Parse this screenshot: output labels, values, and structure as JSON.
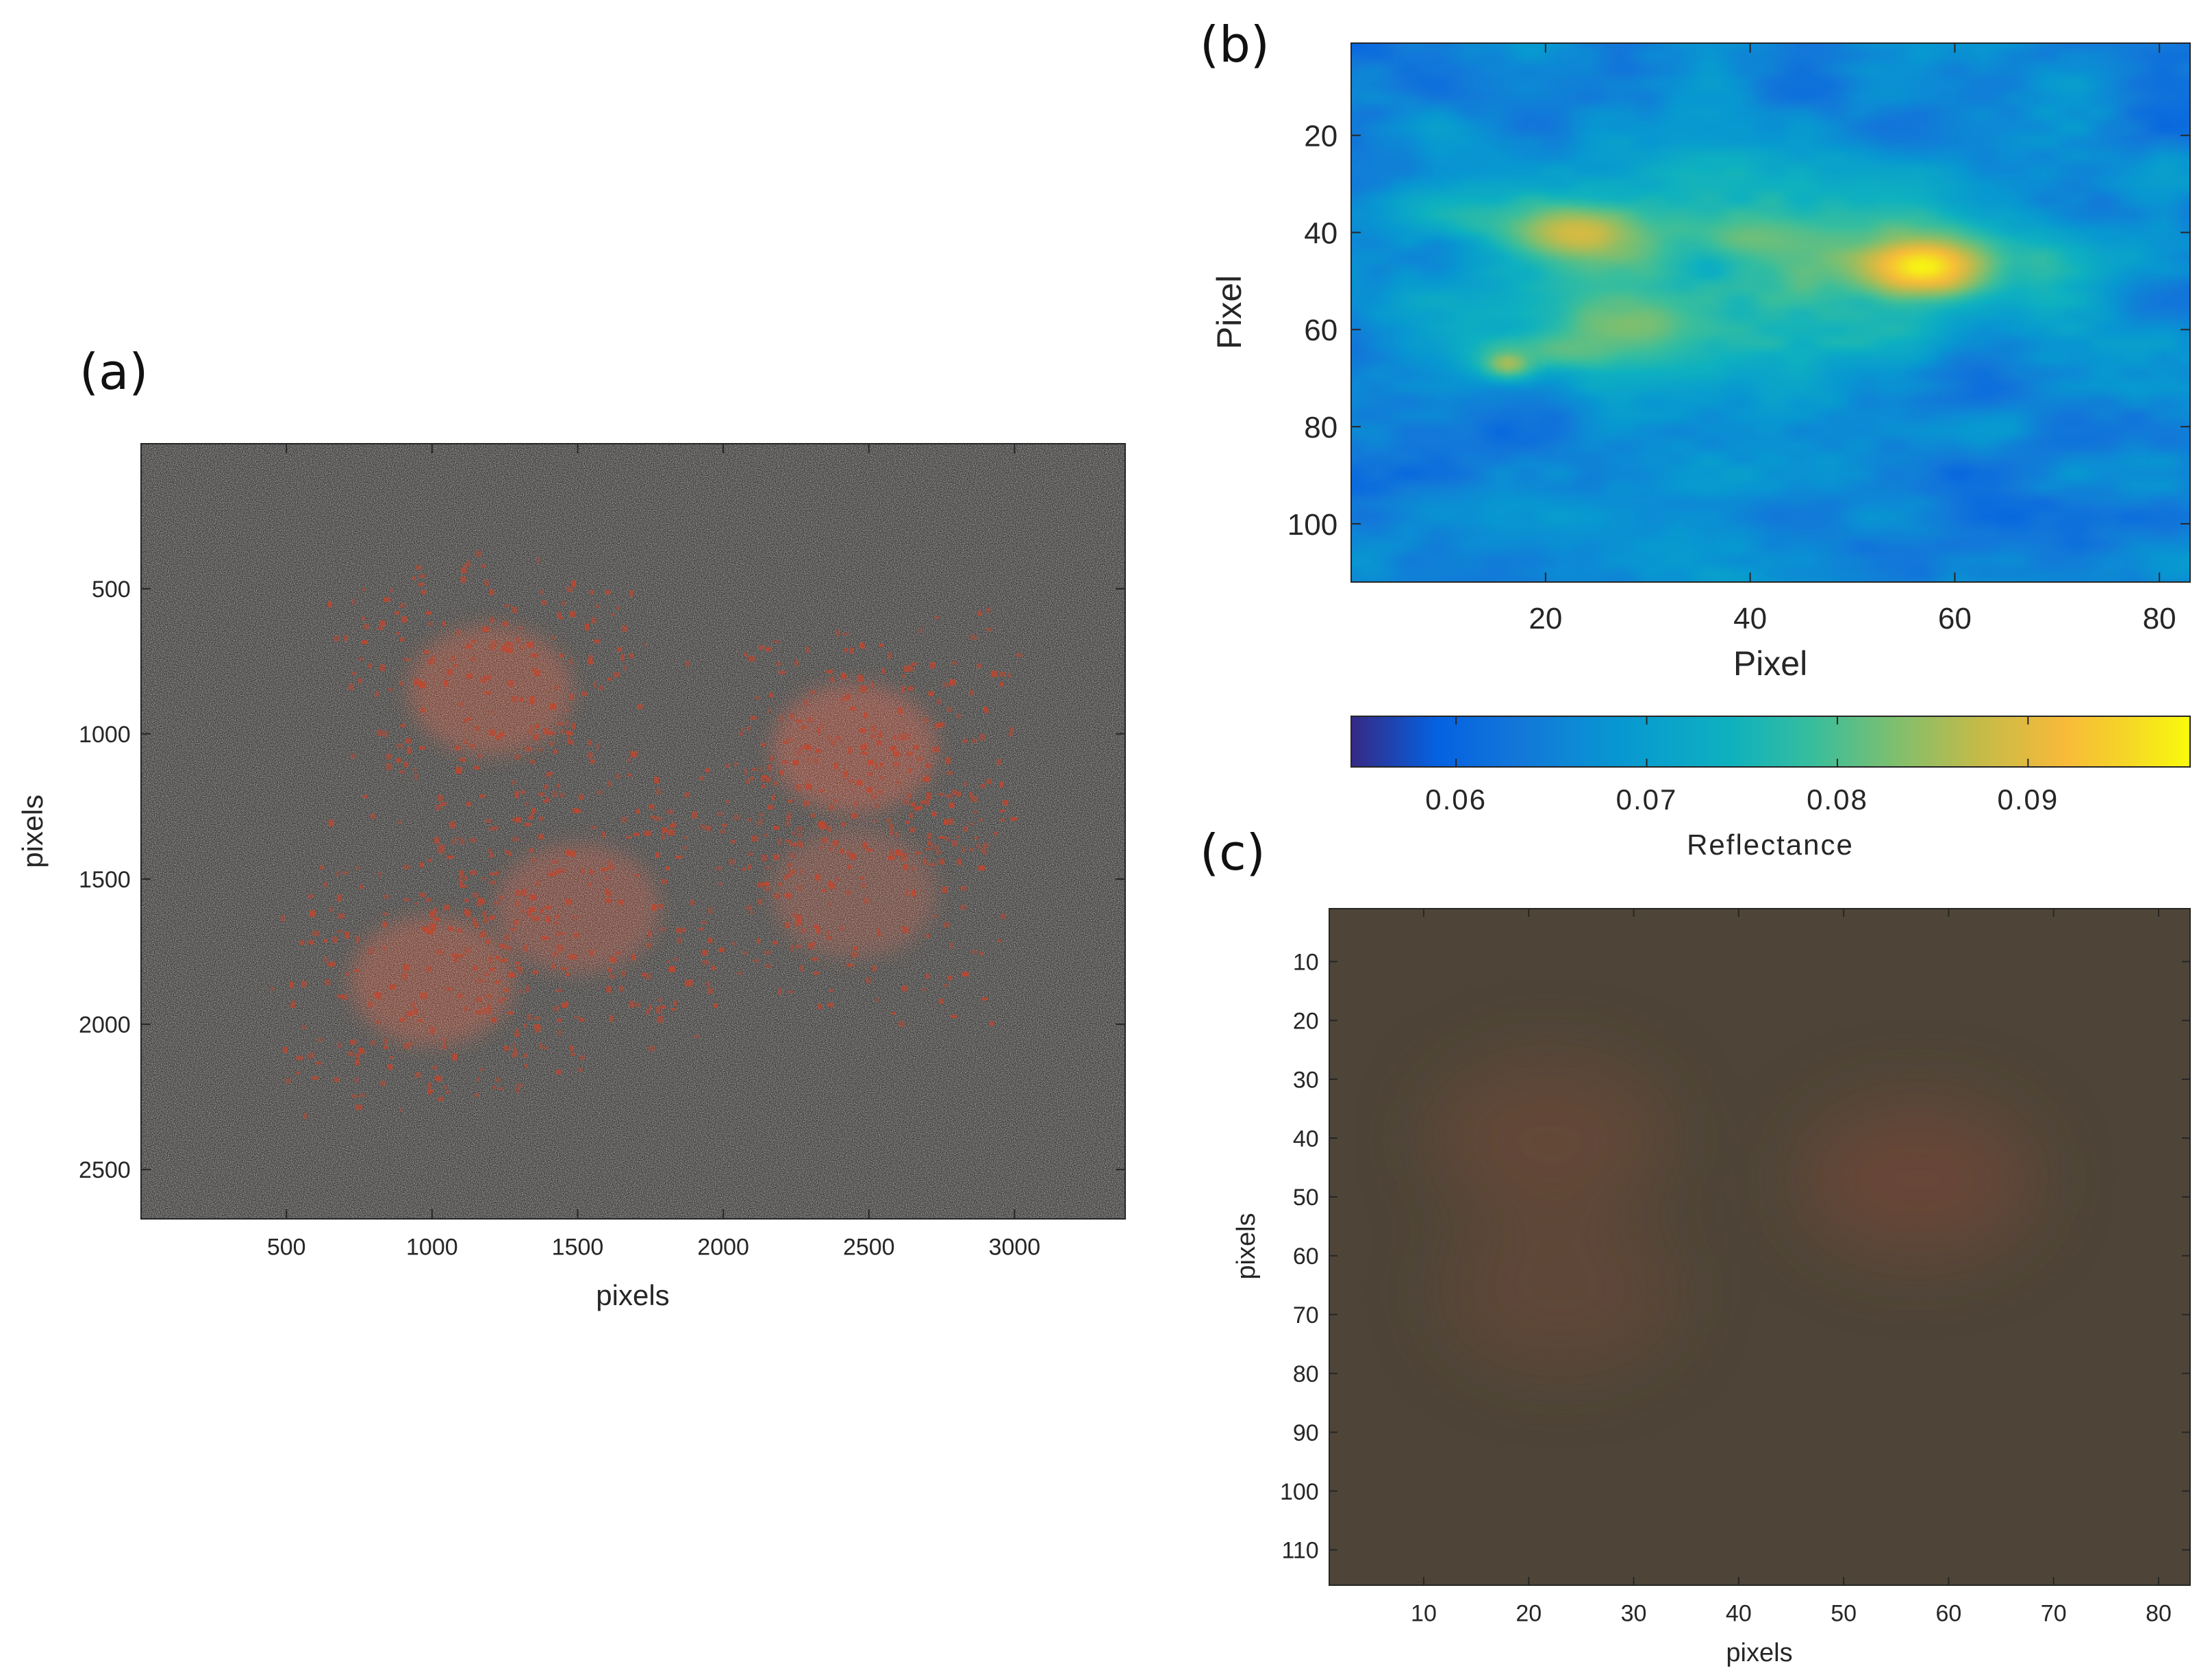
{
  "panels": [
    {
      "id": "a",
      "label": "(a)",
      "type": "image",
      "xlabel": "pixels",
      "ylabel": "pixels",
      "xlim": [
        1,
        3380
      ],
      "ylim": [
        1,
        2670
      ],
      "xticks": [
        500,
        1000,
        1500,
        2000,
        2500,
        3000
      ],
      "yticks": [
        500,
        1000,
        1500,
        2000,
        2500
      ],
      "background_color": "#3b3a38",
      "highlight_color": "#c8442a"
    },
    {
      "id": "b",
      "label": "(b)",
      "type": "heatmap",
      "xlabel": "Pixel",
      "ylabel": "Pixel",
      "xlim": [
        1,
        83
      ],
      "ylim": [
        1,
        112
      ],
      "xticks": [
        20,
        40,
        60,
        80
      ],
      "yticks": [
        20,
        40,
        60,
        80,
        100
      ],
      "colormap": "parula",
      "colorbar": {
        "label": "Reflectance",
        "range": [
          0.0545,
          0.0985
        ],
        "ticks": [
          0.06,
          0.07,
          0.08,
          0.09
        ],
        "tick_labels": [
          "0.06",
          "0.07",
          "0.08",
          "0.09"
        ],
        "placement": "bottom"
      }
    },
    {
      "id": "c",
      "label": "(c)",
      "type": "image",
      "xlabel": "pixels",
      "ylabel": "pixels",
      "xlim": [
        1,
        83
      ],
      "ylim": [
        1,
        116
      ],
      "xticks": [
        10,
        20,
        30,
        40,
        50,
        60,
        70,
        80
      ],
      "yticks": [
        10,
        20,
        30,
        40,
        50,
        60,
        70,
        80,
        90,
        100,
        110
      ],
      "background_color": "#4e4538",
      "highlight_color": "#7a4a36"
    }
  ],
  "chart_data": [
    {
      "panel": "a",
      "type": "heatmap",
      "xlabel": "pixels",
      "ylabel": "pixels",
      "x_range": [
        1,
        3380
      ],
      "y_range": [
        1,
        2670
      ],
      "note_regions": [
        {
          "x": 1200,
          "y": 850,
          "intensity": 0.8
        },
        {
          "x": 2450,
          "y": 1050,
          "intensity": 0.9
        },
        {
          "x": 1500,
          "y": 1600,
          "intensity": 0.7
        },
        {
          "x": 1000,
          "y": 1850,
          "intensity": 0.8
        },
        {
          "x": 2450,
          "y": 1550,
          "intensity": 0.6
        }
      ]
    },
    {
      "panel": "b",
      "type": "heatmap",
      "xlabel": "Pixel",
      "ylabel": "Pixel",
      "x_range": [
        1,
        83
      ],
      "y_range": [
        1,
        112
      ],
      "value_range": [
        0.0545,
        0.0985
      ],
      "base_value": 0.065,
      "hotspots": [
        {
          "x": 23,
          "y": 40,
          "peak": 0.089,
          "sx": 4.5,
          "sy": 4.0
        },
        {
          "x": 57,
          "y": 47,
          "peak": 0.098,
          "sx": 4.0,
          "sy": 4.0
        },
        {
          "x": 40,
          "y": 41,
          "peak": 0.082,
          "sx": 4.0,
          "sy": 3.0
        },
        {
          "x": 48,
          "y": 44,
          "peak": 0.081,
          "sx": 4.0,
          "sy": 3.0
        },
        {
          "x": 16,
          "y": 67,
          "peak": 0.086,
          "sx": 2.0,
          "sy": 2.5
        },
        {
          "x": 22,
          "y": 64,
          "peak": 0.081,
          "sx": 5.0,
          "sy": 3.0
        },
        {
          "x": 28,
          "y": 59,
          "peak": 0.083,
          "sx": 4.0,
          "sy": 3.0
        }
      ],
      "halo": [
        {
          "x": 33,
          "y": 40,
          "amp": 0.0125,
          "sx": 18,
          "sy": 12
        },
        {
          "x": 60,
          "y": 48,
          "amp": 0.0115,
          "sx": 11,
          "sy": 10
        },
        {
          "x": 25,
          "y": 62,
          "amp": 0.0095,
          "sx": 13,
          "sy": 8
        }
      ]
    },
    {
      "panel": "c",
      "type": "heatmap",
      "xlabel": "pixels",
      "ylabel": "pixels",
      "x_range": [
        1,
        83
      ],
      "y_range": [
        1,
        116
      ],
      "note_regions": [
        {
          "x": 22,
          "y": 40,
          "intensity": 0.5
        },
        {
          "x": 57,
          "y": 47,
          "intensity": 0.6
        },
        {
          "x": 23,
          "y": 66,
          "intensity": 0.4
        }
      ]
    }
  ]
}
